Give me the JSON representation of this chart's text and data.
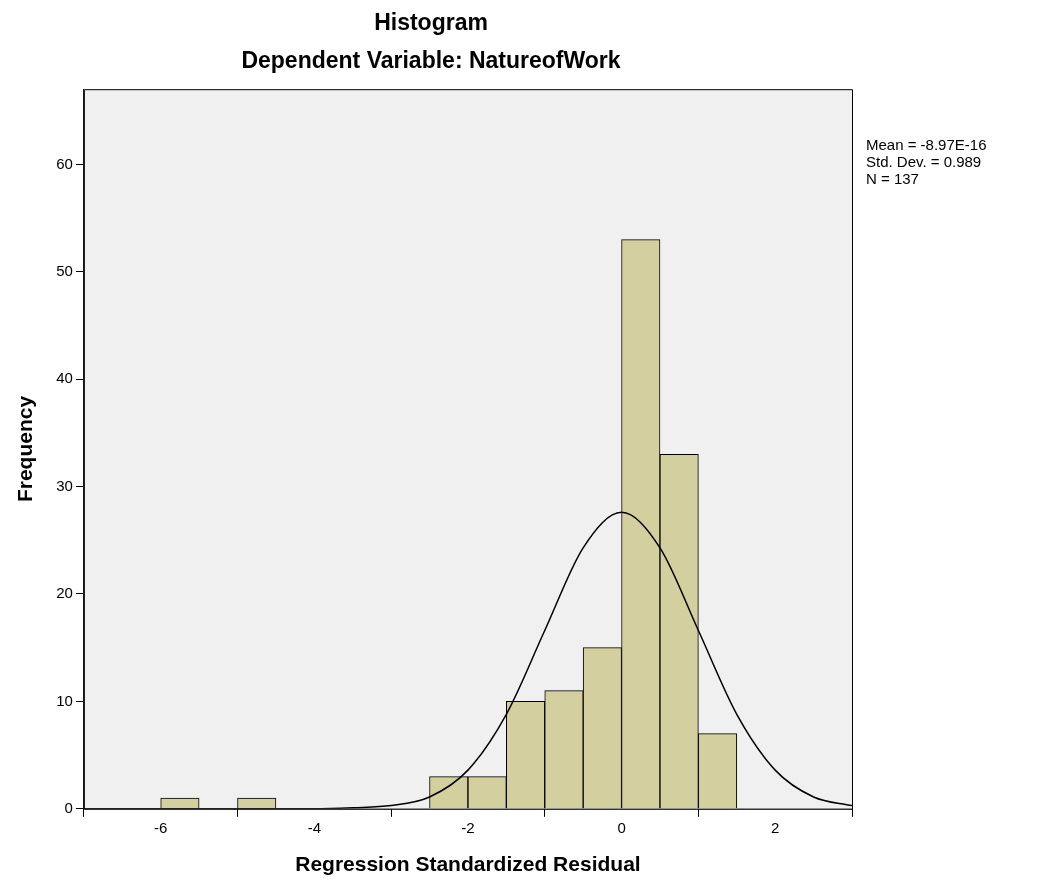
{
  "chart_data": {
    "type": "histogram",
    "title": "Histogram",
    "subtitle": "Dependent Variable: NatureofWork",
    "xlabel": "Regression Standardized Residual",
    "ylabel": "Frequency",
    "bins": [
      -6,
      -5.5,
      -5,
      -4.5,
      -4,
      -3.5,
      -3,
      -2.5,
      -2,
      -1.5,
      -1,
      -0.5,
      0,
      0.5,
      1,
      1.5
    ],
    "values": [
      1,
      0,
      1,
      0,
      0,
      0,
      0,
      3,
      3,
      10,
      11,
      15,
      53,
      33,
      7
    ],
    "color": "#d4cf9e",
    "series": [
      {
        "type": "line",
        "color": "#000000",
        "x": [
          -7,
          -4,
          -3.5,
          -3,
          -2.5,
          -2,
          -1.5,
          -1,
          -0.5,
          0,
          0.5,
          1,
          1.5,
          2,
          2.5,
          3
        ],
        "values": [
          0,
          0,
          0.1,
          0.3,
          1.1,
          3.6,
          8.8,
          16.6,
          24.3,
          27.6,
          24.3,
          16.6,
          8.8,
          3.6,
          1.1,
          0.3
        ]
      }
    ],
    "xlim": [
      -7,
      3
    ],
    "xticks": [
      -6,
      -4,
      -2,
      0,
      2
    ],
    "ylim": [
      0,
      67
    ],
    "yticks": [
      0,
      10,
      20,
      30,
      40,
      50,
      60
    ],
    "grid": false,
    "legend": false,
    "annotations": [
      "Mean = -8.97E-16",
      "Std. Dev. = 0.989",
      "N = 137"
    ]
  }
}
